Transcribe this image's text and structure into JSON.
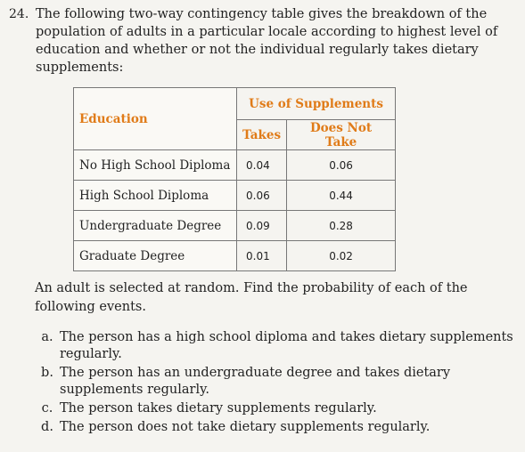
{
  "problem": {
    "number": "24.",
    "statement": "The following two-way contingency table gives the breakdown of the population of adults in a particular locale according to highest level of education and whether or not the individual regularly takes dietary supplements:"
  },
  "table": {
    "row_header": "Education",
    "column_group": "Use of Supplements",
    "columns": [
      "Takes",
      "Does Not Take"
    ],
    "rows": [
      {
        "label": "No High School Diploma",
        "takes": "0.04",
        "not_take": "0.06"
      },
      {
        "label": "High School Diploma",
        "takes": "0.06",
        "not_take": "0.44"
      },
      {
        "label": "Undergraduate Degree",
        "takes": "0.09",
        "not_take": "0.28"
      },
      {
        "label": "Graduate Degree",
        "takes": "0.01",
        "not_take": "0.02"
      }
    ]
  },
  "instruction": "An adult is selected at random. Find the probability of each of the following events.",
  "parts": [
    {
      "letter": "a.",
      "text": "The person has a high school diploma and takes dietary supplements regularly."
    },
    {
      "letter": "b.",
      "text": "The person has an undergraduate degree and takes dietary supplements regularly."
    },
    {
      "letter": "c.",
      "text": "The person takes dietary supplements regularly."
    },
    {
      "letter": "d.",
      "text": "The person does not take dietary supplements regularly."
    }
  ],
  "colors": {
    "header_accent": "#e07b18",
    "background": "#f5f4f0"
  }
}
